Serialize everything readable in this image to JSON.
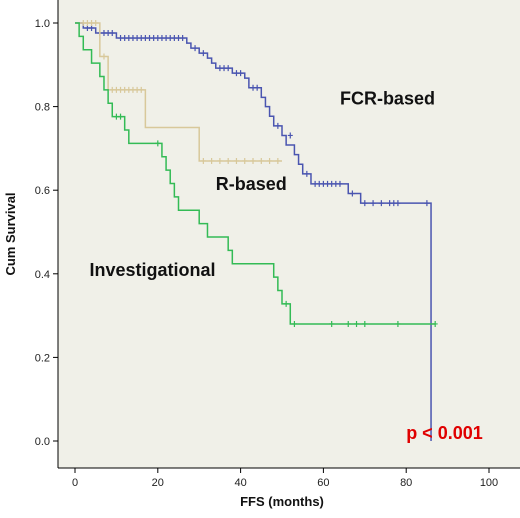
{
  "chart_data": {
    "type": "line",
    "step": true,
    "xlabel": "FFS (months)",
    "ylabel": "Cum Survival",
    "xlim": [
      0,
      100
    ],
    "ylim": [
      0,
      1.0
    ],
    "x_ticks": [
      "0",
      "20",
      "40",
      "60",
      "80",
      "100"
    ],
    "y_ticks": [
      "0.0",
      "0.2",
      "0.4",
      "0.6",
      "0.8",
      "1.0"
    ],
    "grid": false,
    "plot_background": "#f0f0e8",
    "annotations": [
      {
        "text": "FCR-based",
        "x": 64,
        "y": 0.805
      },
      {
        "text": "R-based",
        "x": 34,
        "y": 0.6
      },
      {
        "text": "Investigational",
        "x": 3.5,
        "y": 0.395
      }
    ],
    "p_value": {
      "text": "p < 0.001",
      "x": 80,
      "y": 0.005,
      "color": "#e00000"
    },
    "series": [
      {
        "color": "#4a55b0",
        "steps": [
          [
            0,
            1.0
          ],
          [
            2,
            0.988
          ],
          [
            5,
            0.976
          ],
          [
            10,
            0.964
          ],
          [
            27,
            0.952
          ],
          [
            28,
            0.94
          ],
          [
            30,
            0.928
          ],
          [
            32,
            0.916
          ],
          [
            33,
            0.904
          ],
          [
            34,
            0.892
          ],
          [
            38,
            0.88
          ],
          [
            41,
            0.868
          ],
          [
            42,
            0.845
          ],
          [
            45,
            0.822
          ],
          [
            46,
            0.8
          ],
          [
            47,
            0.777
          ],
          [
            48,
            0.754
          ],
          [
            50,
            0.731
          ],
          [
            51,
            0.708
          ],
          [
            53,
            0.685
          ],
          [
            54,
            0.662
          ],
          [
            55,
            0.639
          ],
          [
            57,
            0.615
          ],
          [
            66,
            0.592
          ],
          [
            69,
            0.569
          ],
          [
            86,
            0.0
          ]
        ],
        "end": 86,
        "censors": [
          [
            3,
            0.988
          ],
          [
            4,
            0.988
          ],
          [
            6,
            0.976
          ],
          [
            7,
            0.976
          ],
          [
            8,
            0.976
          ],
          [
            9,
            0.976
          ],
          [
            11,
            0.964
          ],
          [
            12,
            0.964
          ],
          [
            13,
            0.964
          ],
          [
            14,
            0.964
          ],
          [
            15,
            0.964
          ],
          [
            16,
            0.964
          ],
          [
            17,
            0.964
          ],
          [
            18,
            0.964
          ],
          [
            19,
            0.964
          ],
          [
            20,
            0.964
          ],
          [
            21,
            0.964
          ],
          [
            22,
            0.964
          ],
          [
            23,
            0.964
          ],
          [
            24,
            0.964
          ],
          [
            25,
            0.964
          ],
          [
            26,
            0.964
          ],
          [
            29,
            0.94
          ],
          [
            31,
            0.928
          ],
          [
            35,
            0.892
          ],
          [
            36,
            0.892
          ],
          [
            37,
            0.892
          ],
          [
            39,
            0.88
          ],
          [
            40,
            0.88
          ],
          [
            43,
            0.845
          ],
          [
            44,
            0.845
          ],
          [
            49,
            0.754
          ],
          [
            52,
            0.731
          ],
          [
            56,
            0.639
          ],
          [
            58,
            0.615
          ],
          [
            59,
            0.615
          ],
          [
            60,
            0.615
          ],
          [
            61,
            0.615
          ],
          [
            62,
            0.615
          ],
          [
            63,
            0.615
          ],
          [
            64,
            0.615
          ],
          [
            67,
            0.592
          ],
          [
            70,
            0.569
          ],
          [
            72,
            0.569
          ],
          [
            74,
            0.569
          ],
          [
            76,
            0.569
          ],
          [
            77,
            0.569
          ],
          [
            78,
            0.569
          ],
          [
            85,
            0.569
          ]
        ]
      },
      {
        "color": "#d8c89a",
        "steps": [
          [
            0,
            1.0
          ],
          [
            6,
            0.92
          ],
          [
            8,
            0.84
          ],
          [
            17,
            0.75
          ],
          [
            30,
            0.67
          ]
        ],
        "end": 50,
        "censors": [
          [
            2,
            1.0
          ],
          [
            3,
            1.0
          ],
          [
            4,
            1.0
          ],
          [
            5,
            1.0
          ],
          [
            7,
            0.92
          ],
          [
            9,
            0.84
          ],
          [
            10,
            0.84
          ],
          [
            11,
            0.84
          ],
          [
            12,
            0.84
          ],
          [
            13,
            0.84
          ],
          [
            14,
            0.84
          ],
          [
            15,
            0.84
          ],
          [
            16,
            0.84
          ],
          [
            31,
            0.67
          ],
          [
            33,
            0.67
          ],
          [
            35,
            0.67
          ],
          [
            37,
            0.67
          ],
          [
            39,
            0.67
          ],
          [
            41,
            0.67
          ],
          [
            43,
            0.67
          ],
          [
            45,
            0.67
          ],
          [
            47,
            0.67
          ],
          [
            49,
            0.67
          ]
        ]
      },
      {
        "color": "#33bb55",
        "steps": [
          [
            0,
            1.0
          ],
          [
            1,
            0.968
          ],
          [
            2,
            0.936
          ],
          [
            4,
            0.904
          ],
          [
            6,
            0.872
          ],
          [
            7,
            0.84
          ],
          [
            8,
            0.808
          ],
          [
            9,
            0.776
          ],
          [
            12,
            0.744
          ],
          [
            13,
            0.712
          ],
          [
            21,
            0.68
          ],
          [
            22,
            0.648
          ],
          [
            23,
            0.616
          ],
          [
            24,
            0.584
          ],
          [
            25,
            0.552
          ],
          [
            30,
            0.52
          ],
          [
            32,
            0.488
          ],
          [
            37,
            0.456
          ],
          [
            38,
            0.424
          ],
          [
            48,
            0.392
          ],
          [
            49,
            0.36
          ],
          [
            50,
            0.328
          ],
          [
            52,
            0.28
          ]
        ],
        "end": 87,
        "censors": [
          [
            10,
            0.776
          ],
          [
            11,
            0.776
          ],
          [
            20,
            0.712
          ],
          [
            51,
            0.328
          ],
          [
            53,
            0.28
          ],
          [
            62,
            0.28
          ],
          [
            66,
            0.28
          ],
          [
            68,
            0.28
          ],
          [
            70,
            0.28
          ],
          [
            78,
            0.28
          ],
          [
            87,
            0.28
          ]
        ]
      }
    ]
  }
}
